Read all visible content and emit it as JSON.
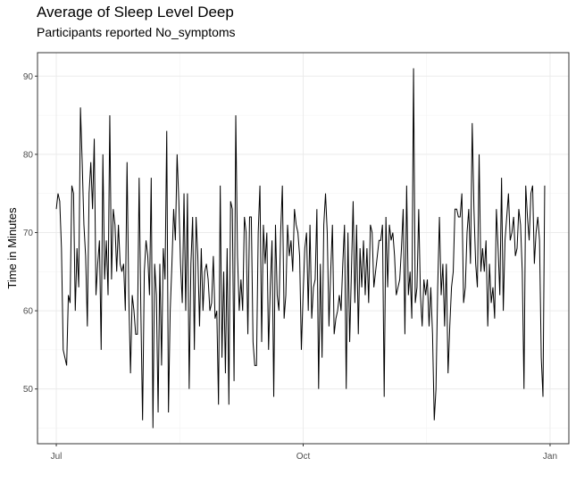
{
  "chart_data": {
    "type": "line",
    "title": "Average of Sleep Level Deep",
    "subtitle": "Participants reported No_symptoms",
    "xlabel": "",
    "ylabel": "Time in Minutes",
    "x_start": "2020-07-01",
    "x_end": "2020-12-30",
    "xlim": [
      "2020-06-24",
      "2021-01-08"
    ],
    "x_ticks": [
      {
        "date": "2020-07-01",
        "label": "Jul"
      },
      {
        "date": "2020-10-01",
        "label": "Oct"
      },
      {
        "date": "2021-01-01",
        "label": "Jan"
      }
    ],
    "ylim": [
      43,
      93
    ],
    "y_ticks": [
      50,
      60,
      70,
      80,
      90
    ],
    "grid": true,
    "line_color": "#000000",
    "series": [
      {
        "values": [
          73,
          75,
          74,
          68,
          55,
          54,
          53,
          62,
          61,
          76,
          75,
          60,
          68,
          63,
          86,
          79,
          71,
          67,
          58,
          75,
          79,
          73,
          82,
          62,
          66,
          69,
          55,
          80,
          64,
          69,
          62,
          85,
          64,
          73,
          71,
          65,
          71,
          66,
          65,
          66,
          60,
          79,
          62,
          52,
          62,
          60,
          57,
          57,
          77,
          60,
          46,
          65,
          69,
          67,
          62,
          77,
          45,
          66,
          62,
          47,
          66,
          53,
          68,
          64,
          83,
          47,
          60,
          66,
          73,
          69,
          80,
          74,
          66,
          61,
          75,
          60,
          75,
          50,
          66,
          72,
          55,
          72,
          67,
          58,
          68,
          60,
          65,
          66,
          64,
          60,
          61,
          67,
          59,
          60,
          48,
          76,
          54,
          65,
          52,
          68,
          48,
          74,
          73,
          51,
          85,
          67,
          60,
          64,
          60,
          72,
          70,
          57,
          72,
          72,
          56,
          53,
          53,
          70,
          76,
          56,
          71,
          66,
          70,
          55,
          63,
          69,
          49,
          71,
          62,
          60,
          70,
          76,
          59,
          62,
          71,
          67,
          69,
          65,
          73,
          71,
          70,
          67,
          55,
          62,
          68,
          70,
          60,
          71,
          59,
          63,
          64,
          73,
          50,
          66,
          54,
          71,
          75,
          70,
          58,
          65,
          71,
          57,
          59,
          60,
          62,
          60,
          66,
          71,
          50,
          70,
          56,
          65,
          74,
          61,
          71,
          57,
          68,
          63,
          69,
          62,
          68,
          61,
          71,
          70,
          63,
          65,
          67,
          69,
          69,
          71,
          49,
          72,
          63,
          71,
          69,
          70,
          67,
          62,
          63,
          64,
          68,
          73,
          57,
          76,
          62,
          65,
          59,
          91,
          61,
          63,
          73,
          62,
          58,
          64,
          62,
          64,
          58,
          63,
          57,
          46,
          50,
          63,
          72,
          62,
          66,
          58,
          66,
          52,
          58,
          63,
          65,
          73,
          73,
          72,
          72,
          75,
          61,
          63,
          70,
          73,
          66,
          84,
          73,
          66,
          63,
          80,
          65,
          68,
          65,
          69,
          58,
          66,
          61,
          63,
          59,
          73,
          68,
          62,
          77,
          60,
          69,
          72,
          75,
          69,
          70,
          72,
          67,
          68,
          73,
          71,
          65,
          50,
          76,
          72,
          69,
          75,
          76,
          66,
          70,
          72,
          69,
          54,
          49,
          76
        ]
      }
    ]
  }
}
